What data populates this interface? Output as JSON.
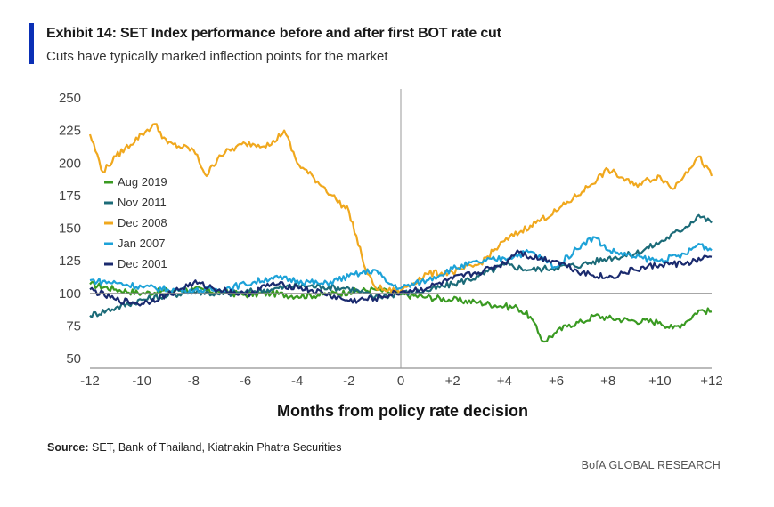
{
  "header": {
    "title": "Exhibit 14: SET Index performance before and after first BOT rate cut",
    "subtitle": "Cuts have typically marked inflection points for the market"
  },
  "footer": {
    "source_label": "Source:",
    "source_text": "SET, Bank of Thailand, Kiatnakin Phatra Securities",
    "brand": "BofA GLOBAL RESEARCH"
  },
  "chart_data": {
    "type": "line",
    "xlabel": "Months from policy rate decision",
    "ylabel": "",
    "xlim": [
      -12,
      12
    ],
    "ylim": [
      50,
      250
    ],
    "x_ticks": [
      -12,
      -10,
      -8,
      -6,
      -4,
      -2,
      0,
      2,
      4,
      6,
      8,
      10,
      12
    ],
    "x_tick_labels": [
      "-12",
      "-10",
      "-8",
      "-6",
      "-4",
      "-2",
      "0",
      "+2",
      "+4",
      "+6",
      "+8",
      "+10",
      "+12"
    ],
    "y_ticks": [
      50,
      75,
      100,
      125,
      150,
      175,
      200,
      225,
      250
    ],
    "reference_line_y": 100,
    "reference_line_x": 0,
    "legend_position": "left",
    "series": [
      {
        "name": "Aug 2019",
        "color": "#3a9a22",
        "points": [
          [
            -12,
            107
          ],
          [
            -11,
            103
          ],
          [
            -10,
            100
          ],
          [
            -9,
            102
          ],
          [
            -8,
            103
          ],
          [
            -7,
            101
          ],
          [
            -6,
            99
          ],
          [
            -5,
            100
          ],
          [
            -4,
            98
          ],
          [
            -3,
            99
          ],
          [
            -2,
            101
          ],
          [
            -1,
            103
          ],
          [
            -0.5,
            101
          ],
          [
            0,
            99
          ],
          [
            1,
            97
          ],
          [
            2,
            95
          ],
          [
            3,
            93
          ],
          [
            4,
            90
          ],
          [
            4.5,
            89
          ],
          [
            5,
            82
          ],
          [
            5.3,
            70
          ],
          [
            5.5,
            63
          ],
          [
            6,
            70
          ],
          [
            6.5,
            76
          ],
          [
            7,
            78
          ],
          [
            7.5,
            83
          ],
          [
            8,
            81
          ],
          [
            9,
            79
          ],
          [
            10,
            78
          ],
          [
            10.5,
            73
          ],
          [
            11,
            78
          ],
          [
            11.5,
            87
          ],
          [
            12,
            86
          ]
        ]
      },
      {
        "name": "Nov 2011",
        "color": "#1c6b78",
        "points": [
          [
            -12,
            83
          ],
          [
            -11,
            89
          ],
          [
            -10,
            95
          ],
          [
            -9,
            98
          ],
          [
            -8,
            102
          ],
          [
            -7,
            99
          ],
          [
            -6,
            101
          ],
          [
            -5,
            103
          ],
          [
            -4,
            106
          ],
          [
            -3,
            105
          ],
          [
            -2,
            104
          ],
          [
            -1,
            97
          ],
          [
            0,
            100
          ],
          [
            1,
            102
          ],
          [
            2,
            107
          ],
          [
            3,
            113
          ],
          [
            4,
            122
          ],
          [
            5,
            118
          ],
          [
            6,
            120
          ],
          [
            7,
            122
          ],
          [
            8,
            127
          ],
          [
            9,
            130
          ],
          [
            10,
            139
          ],
          [
            11,
            151
          ],
          [
            11.5,
            160
          ],
          [
            12,
            154
          ]
        ]
      },
      {
        "name": "Dec 2008",
        "color": "#f0a81e",
        "points": [
          [
            -12,
            222
          ],
          [
            -11.5,
            193
          ],
          [
            -11,
            205
          ],
          [
            -10,
            222
          ],
          [
            -9.5,
            230
          ],
          [
            -9,
            215
          ],
          [
            -8,
            210
          ],
          [
            -7.5,
            190
          ],
          [
            -7,
            206
          ],
          [
            -6,
            215
          ],
          [
            -5,
            214
          ],
          [
            -4.5,
            225
          ],
          [
            -4,
            200
          ],
          [
            -3,
            182
          ],
          [
            -2.5,
            172
          ],
          [
            -2,
            163
          ],
          [
            -1.5,
            128
          ],
          [
            -1.3,
            115
          ],
          [
            -1,
            105
          ],
          [
            -0.5,
            102
          ],
          [
            0,
            102
          ],
          [
            1,
            115
          ],
          [
            2,
            116
          ],
          [
            3,
            122
          ],
          [
            4,
            140
          ],
          [
            5,
            152
          ],
          [
            6,
            163
          ],
          [
            7,
            178
          ],
          [
            8,
            195
          ],
          [
            9,
            183
          ],
          [
            10,
            190
          ],
          [
            10.5,
            180
          ],
          [
            11,
            193
          ],
          [
            11.5,
            205
          ],
          [
            12,
            190
          ]
        ]
      },
      {
        "name": "Jan 2007",
        "color": "#1da2d8",
        "points": [
          [
            -12,
            110
          ],
          [
            -11,
            108
          ],
          [
            -10,
            105
          ],
          [
            -9,
            103
          ],
          [
            -8,
            102
          ],
          [
            -7,
            103
          ],
          [
            -6,
            107
          ],
          [
            -5,
            112
          ],
          [
            -4,
            110
          ],
          [
            -3,
            107
          ],
          [
            -2,
            113
          ],
          [
            -1,
            118
          ],
          [
            -0.5,
            108
          ],
          [
            0,
            104
          ],
          [
            1,
            110
          ],
          [
            2,
            119
          ],
          [
            3,
            124
          ],
          [
            4,
            127
          ],
          [
            5,
            132
          ],
          [
            6,
            120
          ],
          [
            7,
            138
          ],
          [
            7.5,
            143
          ],
          [
            8,
            133
          ],
          [
            9,
            128
          ],
          [
            10,
            125
          ],
          [
            11,
            130
          ],
          [
            11.5,
            138
          ],
          [
            12,
            133
          ]
        ]
      },
      {
        "name": "Dec 2001",
        "color": "#1a2a6e",
        "points": [
          [
            -12,
            103
          ],
          [
            -11,
            95
          ],
          [
            -10,
            92
          ],
          [
            -9,
            99
          ],
          [
            -8,
            108
          ],
          [
            -7,
            103
          ],
          [
            -6,
            99
          ],
          [
            -5,
            107
          ],
          [
            -4,
            105
          ],
          [
            -3,
            100
          ],
          [
            -2,
            94
          ],
          [
            -1,
            96
          ],
          [
            0,
            101
          ],
          [
            1,
            104
          ],
          [
            2,
            111
          ],
          [
            3,
            116
          ],
          [
            4,
            123
          ],
          [
            4.5,
            133
          ],
          [
            5,
            128
          ],
          [
            6,
            125
          ],
          [
            7,
            116
          ],
          [
            8,
            112
          ],
          [
            9,
            118
          ],
          [
            10,
            122
          ],
          [
            11,
            123
          ],
          [
            12,
            128
          ]
        ]
      }
    ]
  }
}
